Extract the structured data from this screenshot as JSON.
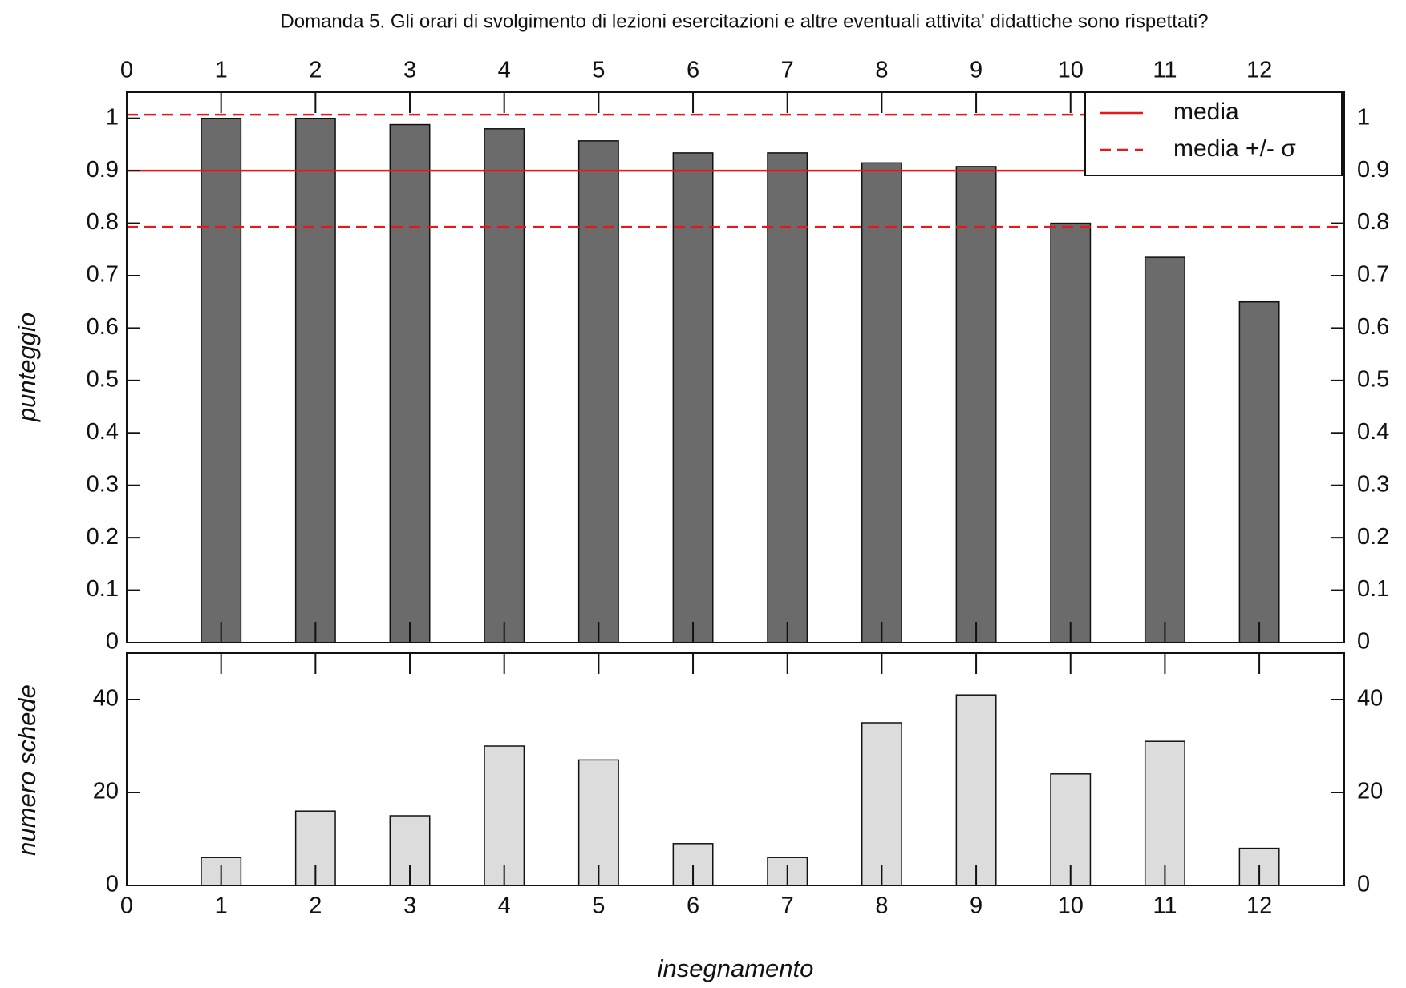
{
  "chart_data": [
    {
      "type": "bar",
      "title": "Domanda 5. Gli orari di svolgimento di lezioni esercitazioni e altre eventuali attivita' didattiche sono rispettati?",
      "ylabel": "punteggio",
      "x": [
        1,
        2,
        3,
        4,
        5,
        6,
        7,
        8,
        9,
        10,
        11,
        12
      ],
      "values": [
        1.0,
        1.0,
        0.988,
        0.98,
        0.957,
        0.934,
        0.934,
        0.915,
        0.908,
        0.8,
        0.735,
        0.65
      ],
      "color": "#6b6b6b",
      "xlim": [
        0,
        12.9
      ],
      "xticks": [
        0,
        1,
        2,
        3,
        4,
        5,
        6,
        7,
        8,
        9,
        10,
        11,
        12
      ],
      "ylim": [
        0,
        1.05
      ],
      "yticks": [
        0,
        0.1,
        0.2,
        0.3,
        0.4,
        0.5,
        0.6,
        0.7,
        0.8,
        0.9,
        1
      ],
      "reference_lines": [
        {
          "name": "media",
          "color": "#e8171c",
          "style": "solid",
          "values": [
            0.9
          ]
        },
        {
          "name": "media +/- σ",
          "color": "#e8171c",
          "style": "dashed",
          "values": [
            0.793,
            1.007
          ]
        }
      ],
      "legend": "upper right"
    },
    {
      "type": "bar",
      "ylabel": "numero schede",
      "xlabel": "insegnamento",
      "x": [
        1,
        2,
        3,
        4,
        5,
        6,
        7,
        8,
        9,
        10,
        11,
        12
      ],
      "values": [
        6,
        16,
        15,
        30,
        27,
        9,
        6,
        35,
        41,
        24,
        31,
        8
      ],
      "color": "#dcdcdc",
      "xlim": [
        0,
        12.9
      ],
      "xticks": [
        0,
        1,
        2,
        3,
        4,
        5,
        6,
        7,
        8,
        9,
        10,
        11,
        12
      ],
      "ylim": [
        0,
        50
      ],
      "yticks": [
        0,
        20,
        40
      ]
    }
  ]
}
